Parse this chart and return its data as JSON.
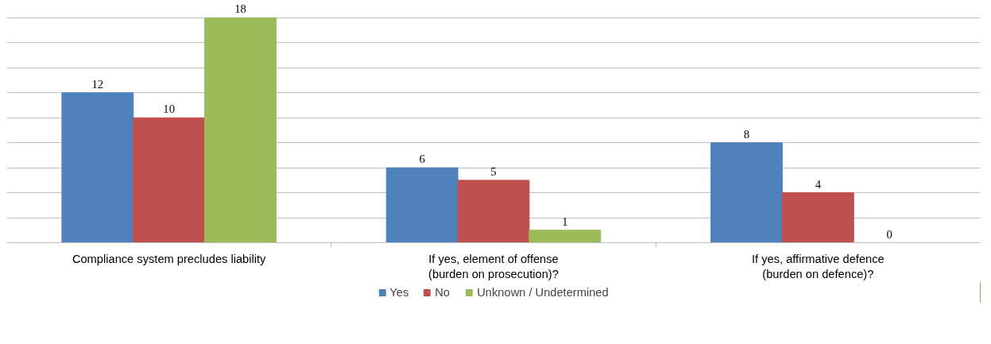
{
  "chart_data": {
    "type": "bar",
    "categories": [
      "Compliance system precludes liability",
      "If yes, element of offense\n(burden on prosecution)?",
      "If yes, affirmative defence\n(burden on defence)?"
    ],
    "series": [
      {
        "name": "Yes",
        "color": "#4f81bd",
        "values": [
          12,
          6,
          8
        ]
      },
      {
        "name": "No",
        "color": "#c0504d",
        "values": [
          10,
          5,
          4
        ]
      },
      {
        "name": "Unknown / Undetermined",
        "color": "#9bbb59",
        "values": [
          18,
          1,
          0
        ]
      }
    ],
    "yticks": [
      {
        "value": 0,
        "label": null
      },
      {
        "value": 2,
        "label": null
      },
      {
        "value": 4,
        "label": null
      },
      {
        "value": 6,
        "label": null
      },
      {
        "value": 8,
        "label": null
      },
      {
        "value": 10,
        "label": null
      },
      {
        "value": 12,
        "label": null
      },
      {
        "value": 14,
        "label": null
      },
      {
        "value": 16,
        "label": null
      },
      {
        "value": 18,
        "label": null
      }
    ],
    "tick_labels": "x",
    "grid": "y",
    "legend": "bottom",
    "data_labels": true
  }
}
